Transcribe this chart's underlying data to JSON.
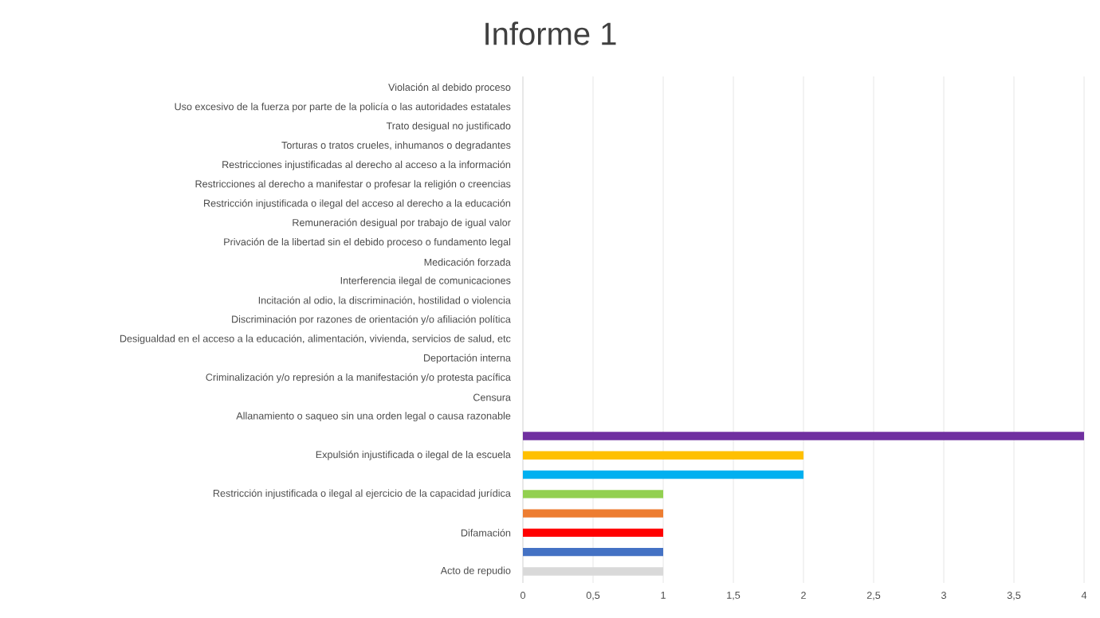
{
  "chart_data": {
    "type": "bar",
    "orientation": "horizontal",
    "title": "Informe 1",
    "categories": [
      "Violación al debido proceso",
      "Uso excesivo de la fuerza por parte de la policía o las autoridades estatales",
      "Trato desigual no justificado",
      "Torturas o tratos crueles, inhumanos o degradantes",
      "Restricciones injustificadas al derecho al acceso a la información",
      "Restricciones al derecho a manifestar o profesar la religión o creencias",
      "Restricción injustificada o ilegal del acceso al derecho a la educación",
      "Remuneración desigual por trabajo de igual valor",
      "Privación de la libertad sin el debido proceso o fundamento legal",
      "Medicación forzada",
      "Interferencia ilegal de comunicaciones",
      "Incitación al odio, la discriminación, hostilidad o violencia",
      "Discriminación por razones de orientación y/o afiliación política",
      "Desigualdad en el acceso a la educación, alimentación, vivienda, servicios de salud, etc",
      "Deportación interna",
      "Criminalización y/o represión a la manifestación y/o protesta pacífica",
      "Censura",
      "Allanamiento o saqueo sin una orden legal o causa razonable",
      null,
      "Expulsión injustificada o ilegal de la escuela",
      null,
      "Restricción injustificada o ilegal al ejercicio de la capacidad jurídica",
      null,
      "Difamación",
      null,
      "Acto de repudio"
    ],
    "values": [
      null,
      null,
      null,
      null,
      null,
      null,
      null,
      null,
      null,
      null,
      null,
      null,
      null,
      null,
      null,
      null,
      null,
      null,
      4,
      2,
      2,
      1,
      1,
      1,
      1,
      1
    ],
    "colors": [
      "#7030a0",
      "#7030a0",
      "#7030a0",
      "#7030a0",
      "#7030a0",
      "#7030a0",
      "#7030a0",
      "#7030a0",
      "#7030a0",
      "#7030a0",
      "#7030a0",
      "#7030a0",
      "#7030a0",
      "#7030a0",
      "#7030a0",
      "#7030a0",
      "#7030a0",
      "#7030a0",
      "#7030a0",
      "#ffc000",
      "#00b0f0",
      "#92d050",
      "#ed7d31",
      "#ff0000",
      "#4472c4",
      "#d9d9d9"
    ],
    "xlim": [
      0,
      4
    ],
    "xticks": [
      0,
      {
        "value": 0.5,
        "label": "0,5"
      },
      1,
      {
        "value": 1.5,
        "label": "1,5"
      },
      2,
      {
        "value": 2.5,
        "label": "2,5"
      },
      3,
      {
        "value": 3.5,
        "label": "3,5"
      },
      4
    ],
    "grid": "x"
  }
}
